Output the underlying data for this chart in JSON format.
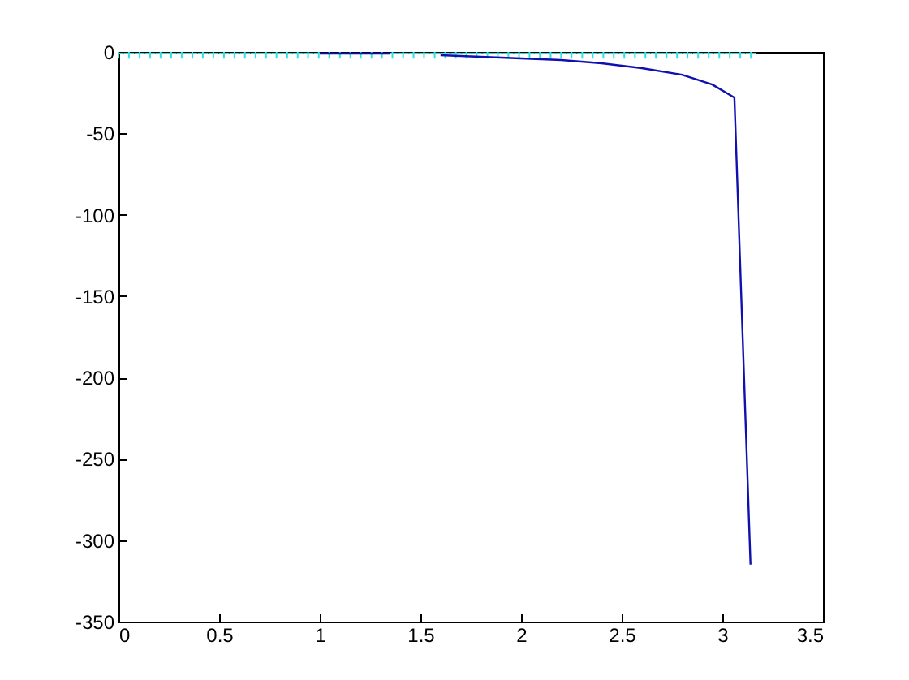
{
  "chart_data": {
    "type": "line",
    "xlim": [
      0,
      3.5
    ],
    "ylim": [
      -350,
      0
    ],
    "xticks": [
      0,
      0.5,
      1,
      1.5,
      2,
      2.5,
      3,
      3.5
    ],
    "yticks": [
      -350,
      -300,
      -250,
      -200,
      -150,
      -100,
      -50,
      0
    ],
    "grid": false,
    "series": [
      {
        "type": "scatter",
        "marker": "cross",
        "color": "#33e0e0",
        "x": [
          0,
          0.052,
          0.105,
          0.157,
          0.209,
          0.262,
          0.314,
          0.367,
          0.419,
          0.471,
          0.524,
          0.576,
          0.628,
          0.681,
          0.733,
          0.785,
          0.838,
          0.89,
          0.942,
          0.995,
          1.047,
          1.1,
          1.152,
          1.204,
          1.257,
          1.309,
          1.361,
          1.414,
          1.466,
          1.518,
          1.571,
          1.623,
          1.676,
          1.728,
          1.78,
          1.833,
          1.885,
          1.937,
          1.99,
          2.042,
          2.094,
          2.147,
          2.199,
          2.251,
          2.304,
          2.356,
          2.409,
          2.461,
          2.513,
          2.566,
          2.618,
          2.67,
          2.723,
          2.775,
          2.827,
          2.88,
          2.932,
          2.985,
          3.037,
          3.089,
          3.142
        ],
        "values": [
          -1,
          -1,
          -1,
          -1,
          -1,
          -1,
          -1,
          -1,
          -1,
          -1,
          -1,
          -1,
          -1,
          -1,
          -1,
          -1,
          -1,
          -1,
          -1,
          -1,
          -1,
          -1,
          -1,
          -1,
          -1,
          -1,
          -1,
          -1,
          -1,
          -1,
          -1,
          -1,
          -1,
          -1,
          -1,
          -1,
          -1,
          -1,
          -1,
          -1,
          -1,
          -1,
          -1,
          -1,
          -1,
          -1,
          -1,
          -1,
          -1,
          -1,
          -1,
          -1,
          -1,
          -1,
          -1,
          -1,
          -1,
          -1,
          -1,
          -1,
          -1
        ]
      },
      {
        "color": "#1010b0",
        "x": [
          1,
          1.35,
          1.5,
          1.6,
          1.8,
          2,
          2.2,
          2.4,
          2.6,
          2.8,
          2.95,
          3.06,
          3.14
        ],
        "values": [
          -1,
          -1,
          null,
          -2,
          -3,
          -4,
          -5,
          -7,
          -10,
          -14,
          -20,
          -28,
          -315
        ]
      }
    ]
  }
}
